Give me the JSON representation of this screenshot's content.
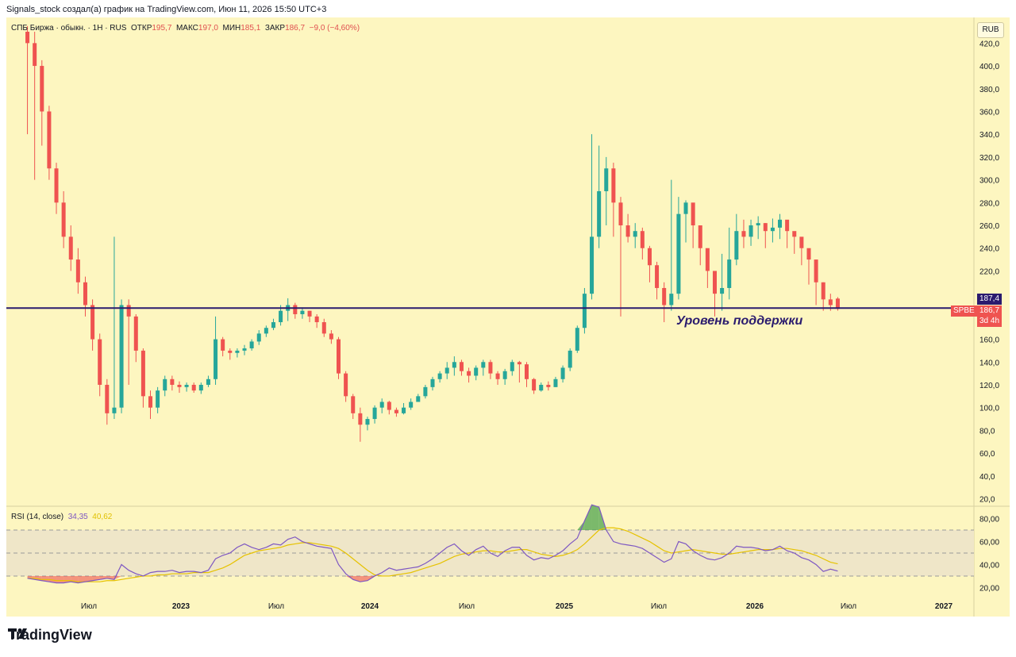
{
  "header": {
    "title": "Signals_stock создал(а) график на TradingView.com, Июн 11, 2026 15:50 UTC+3"
  },
  "legend": {
    "symbol": "СПБ Биржа · обыкн. · 1Н · RUS",
    "open_label": "ОТКР",
    "open": "195,7",
    "high_label": "МАКС",
    "high": "197,0",
    "low_label": "МИН",
    "low": "185,1",
    "close_label": "ЗАКР",
    "close": "186,7",
    "change": "−9,0 (−4,60%)"
  },
  "currency": "RUB",
  "price_tags": {
    "support_price": "187,4",
    "ticker": "SPBE",
    "last_price": "186,7",
    "countdown": "3d 4h"
  },
  "annotation": "Уровень поддержки",
  "rsi_legend": {
    "label": "RSI (14, close)",
    "rsi_value": "34,35",
    "ma_value": "40,62"
  },
  "brand": "TradingView",
  "colors": {
    "background": "#fdf6c0",
    "up": "#26a69a",
    "down": "#ef5350",
    "support_line": "#2a1b6e",
    "rsi_line": "#7e57c2",
    "rsi_ma": "#e6c200"
  },
  "chart_data": [
    {
      "type": "candlestick",
      "title": "СПБ Биржа · обыкн. · 1Н · RUS",
      "y_ticks": [
        "420,0",
        "400,0",
        "380,0",
        "360,0",
        "340,0",
        "320,0",
        "300,0",
        "280,0",
        "260,0",
        "240,0",
        "220,0",
        "200,0",
        "180,0",
        "160,0",
        "140,0",
        "120,0",
        "100,0",
        "80,0",
        "60,0",
        "40,0",
        "20,0"
      ],
      "x_ticks": [
        "Июл",
        "2023",
        "Июл",
        "2024",
        "Июл",
        "2025",
        "Июл",
        "2026",
        "Июл",
        "2027"
      ],
      "ylim": [
        12,
        430
      ],
      "support_level": 187.4,
      "weekly_close": [
        420,
        400,
        360,
        310,
        280,
        250,
        230,
        210,
        190,
        160,
        120,
        95,
        100,
        190,
        180,
        150,
        110,
        100,
        115,
        125,
        120,
        118,
        120,
        115,
        120,
        125,
        160,
        150,
        148,
        150,
        152,
        158,
        165,
        170,
        175,
        185,
        190,
        182,
        185,
        180,
        175,
        165,
        160,
        130,
        110,
        95,
        85,
        90,
        100,
        105,
        98,
        95,
        100,
        105,
        110,
        118,
        125,
        130,
        135,
        140,
        132,
        128,
        135,
        140,
        130,
        125,
        132,
        140,
        138,
        125,
        115,
        120,
        118,
        125,
        135,
        150,
        170,
        200,
        250,
        290,
        310,
        280,
        260,
        250,
        255,
        240,
        225,
        205,
        190,
        200,
        270,
        280,
        260,
        240,
        220,
        200,
        205,
        230,
        255,
        250,
        260,
        262,
        255,
        258,
        265,
        255,
        250,
        240,
        230,
        210,
        195,
        190,
        186.7
      ],
      "weekly_open": [
        430,
        420,
        400,
        360,
        310,
        280,
        250,
        230,
        210,
        190,
        160,
        120,
        95,
        100,
        190,
        180,
        150,
        110,
        100,
        115,
        125,
        120,
        118,
        120,
        115,
        120,
        125,
        160,
        150,
        148,
        150,
        152,
        158,
        165,
        170,
        175,
        185,
        190,
        182,
        185,
        180,
        175,
        165,
        160,
        130,
        110,
        95,
        85,
        90,
        100,
        105,
        98,
        95,
        100,
        105,
        110,
        118,
        125,
        130,
        135,
        140,
        132,
        128,
        135,
        140,
        130,
        125,
        132,
        140,
        138,
        125,
        115,
        120,
        118,
        125,
        135,
        150,
        170,
        200,
        250,
        290,
        310,
        280,
        260,
        250,
        255,
        240,
        225,
        205,
        190,
        200,
        270,
        280,
        260,
        240,
        220,
        200,
        205,
        230,
        255,
        250,
        260,
        262,
        255,
        258,
        265,
        255,
        250,
        240,
        230,
        210,
        195,
        195.7
      ],
      "weekly_high": [
        435,
        430,
        405,
        365,
        315,
        290,
        260,
        240,
        215,
        195,
        165,
        125,
        250,
        195,
        195,
        182,
        152,
        115,
        118,
        128,
        128,
        123,
        122,
        122,
        122,
        128,
        180,
        162,
        152,
        152,
        155,
        160,
        168,
        172,
        178,
        190,
        196,
        192,
        188,
        185,
        182,
        178,
        168,
        162,
        132,
        112,
        100,
        92,
        102,
        108,
        106,
        100,
        104,
        108,
        112,
        120,
        127,
        132,
        140,
        145,
        142,
        135,
        137,
        142,
        142,
        132,
        134,
        142,
        141,
        140,
        126,
        122,
        123,
        127,
        137,
        152,
        172,
        205,
        340,
        330,
        320,
        315,
        285,
        270,
        262,
        258,
        242,
        228,
        210,
        300,
        285,
        282,
        265,
        245,
        225,
        210,
        235,
        258,
        270,
        265,
        265,
        268,
        262,
        266,
        270,
        258,
        252,
        242,
        232,
        212,
        210,
        200,
        197.0
      ],
      "weekly_low": [
        340,
        300,
        330,
        300,
        270,
        240,
        220,
        200,
        180,
        150,
        110,
        85,
        90,
        95,
        120,
        140,
        100,
        90,
        95,
        110,
        115,
        113,
        114,
        113,
        112,
        118,
        120,
        145,
        142,
        144,
        146,
        150,
        155,
        162,
        168,
        172,
        176,
        178,
        178,
        175,
        170,
        162,
        156,
        125,
        105,
        90,
        70,
        80,
        86,
        95,
        94,
        92,
        94,
        98,
        105,
        108,
        115,
        122,
        125,
        128,
        128,
        122,
        124,
        128,
        125,
        120,
        120,
        128,
        122,
        118,
        112,
        114,
        115,
        118,
        122,
        132,
        148,
        165,
        195,
        240,
        260,
        250,
        180,
        245,
        240,
        230,
        210,
        195,
        175,
        185,
        195,
        245,
        240,
        225,
        205,
        180,
        185,
        195,
        225,
        240,
        242,
        248,
        240,
        245,
        248,
        240,
        235,
        225,
        208,
        190,
        185,
        185,
        185.1
      ]
    },
    {
      "type": "line",
      "title": "RSI (14, close)",
      "y_ticks": [
        "80,00",
        "60,00",
        "40,00",
        "20,00"
      ],
      "ylim": [
        12,
        88
      ],
      "bands": [
        30,
        50,
        70
      ],
      "series": [
        {
          "name": "RSI",
          "values": [
            28,
            27,
            26,
            25,
            24,
            24,
            25,
            24,
            25,
            26,
            27,
            28,
            27,
            40,
            35,
            32,
            30,
            33,
            34,
            34,
            35,
            33,
            34,
            34,
            33,
            35,
            45,
            48,
            50,
            55,
            58,
            55,
            53,
            55,
            58,
            57,
            62,
            64,
            60,
            58,
            56,
            55,
            54,
            40,
            32,
            27,
            25,
            26,
            30,
            33,
            37,
            35,
            36,
            37,
            38,
            41,
            45,
            50,
            55,
            58,
            52,
            48,
            53,
            56,
            50,
            47,
            52,
            55,
            55,
            48,
            44,
            46,
            45,
            48,
            52,
            58,
            63,
            78,
            92,
            90,
            70,
            60,
            58,
            57,
            56,
            54,
            50,
            46,
            42,
            45,
            60,
            58,
            52,
            48,
            45,
            44,
            46,
            50,
            56,
            55,
            55,
            54,
            52,
            53,
            56,
            52,
            50,
            46,
            44,
            40,
            34,
            36,
            34.35
          ]
        },
        {
          "name": "RSI-based MA",
          "values": [
            28,
            28,
            27,
            27,
            26,
            26,
            26,
            25,
            25,
            25,
            25,
            26,
            26,
            27,
            28,
            29,
            30,
            30,
            31,
            31,
            32,
            32,
            32,
            33,
            33,
            33,
            35,
            37,
            40,
            44,
            48,
            50,
            52,
            53,
            54,
            55,
            57,
            58,
            59,
            59,
            58,
            57,
            56,
            54,
            50,
            45,
            40,
            35,
            31,
            30,
            30,
            31,
            32,
            33,
            35,
            37,
            39,
            41,
            44,
            47,
            49,
            50,
            51,
            52,
            52,
            51,
            51,
            52,
            53,
            53,
            51,
            49,
            48,
            47,
            48,
            50,
            53,
            58,
            64,
            70,
            72,
            72,
            71,
            69,
            66,
            63,
            60,
            56,
            52,
            50,
            51,
            52,
            53,
            52,
            51,
            50,
            49,
            49,
            50,
            51,
            52,
            53,
            53,
            53,
            54,
            54,
            53,
            52,
            50,
            48,
            45,
            42,
            40.62
          ]
        }
      ]
    }
  ]
}
